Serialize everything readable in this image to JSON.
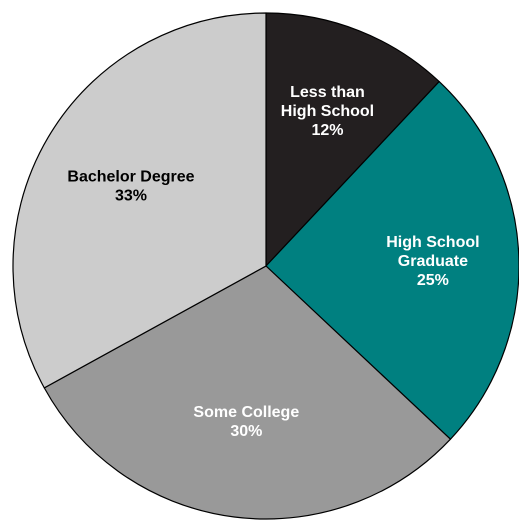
{
  "chart_data": {
    "type": "pie",
    "title": "",
    "start_angle_deg": 0,
    "direction": "clockwise",
    "slices": [
      {
        "name": "Less than High School",
        "label_lines": [
          "Less than",
          "High School",
          "12%"
        ],
        "value": 12,
        "color": "#231f20",
        "text_color": "#ffffff"
      },
      {
        "name": "High School Graduate",
        "label_lines": [
          "High School",
          "Graduate",
          "25%"
        ],
        "value": 25,
        "color": "#008080",
        "text_color": "#ffffff"
      },
      {
        "name": "Some College",
        "label_lines": [
          "Some College",
          "30%"
        ],
        "value": 30,
        "color": "#999999",
        "text_color": "#ffffff"
      },
      {
        "name": "Bachelor Degree",
        "label_lines": [
          "Bachelor Degree",
          "33%"
        ],
        "value": 33,
        "color": "#cccccc",
        "text_color": "#000000"
      }
    ]
  }
}
